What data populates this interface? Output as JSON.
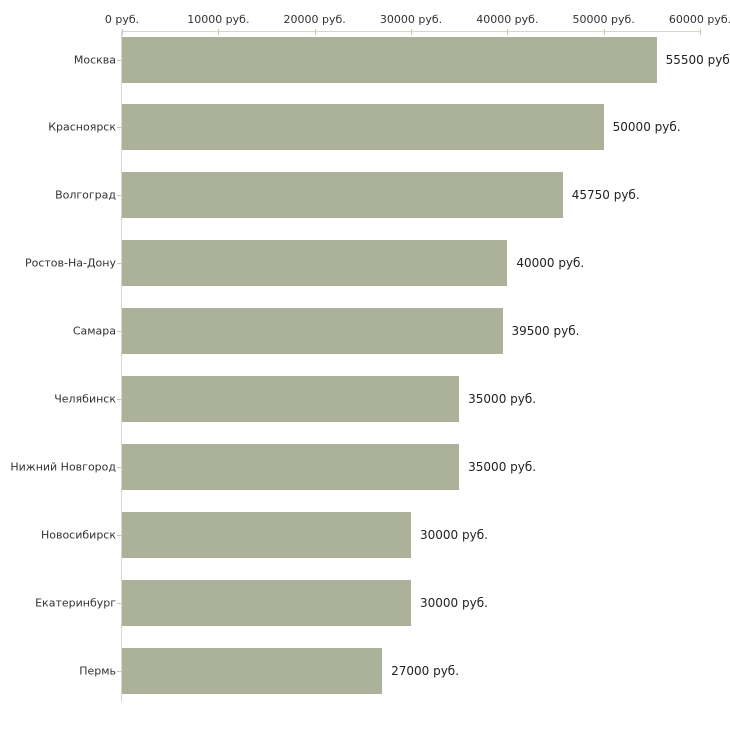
{
  "chart_data": {
    "type": "bar",
    "orientation": "horizontal",
    "title": "",
    "categories": [
      "Москва",
      "Красноярск",
      "Волгоград",
      "Ростов-На-Дону",
      "Самара",
      "Челябинск",
      "Нижний Новгород",
      "Новосибирск",
      "Екатеринбург",
      "Пермь"
    ],
    "values": [
      55500,
      50000,
      45750,
      40000,
      39500,
      35000,
      35000,
      30000,
      30000,
      27000
    ],
    "value_labels": [
      "55500 руб.",
      "50000 руб.",
      "45750 руб.",
      "40000 руб.",
      "39500 руб.",
      "35000 руб.",
      "35000 руб.",
      "30000 руб.",
      "30000 руб.",
      "27000 руб."
    ],
    "unit": "руб.",
    "xlabel": "",
    "ylabel": "",
    "x_axis": {
      "position": "top",
      "min": 0,
      "max": 60000,
      "tick_step": 10000,
      "tick_labels": [
        "0 руб.",
        "10000 руб.",
        "20000 руб.",
        "30000 руб.",
        "40000 руб.",
        "50000 руб.",
        "60000 руб."
      ]
    },
    "grid": false,
    "legend": "none",
    "colors": {
      "bar": "#acb29a",
      "axis_line": "#d6d6ca",
      "tick": "#c9c9b2",
      "text": "#333333",
      "background": "#ffffff"
    }
  }
}
